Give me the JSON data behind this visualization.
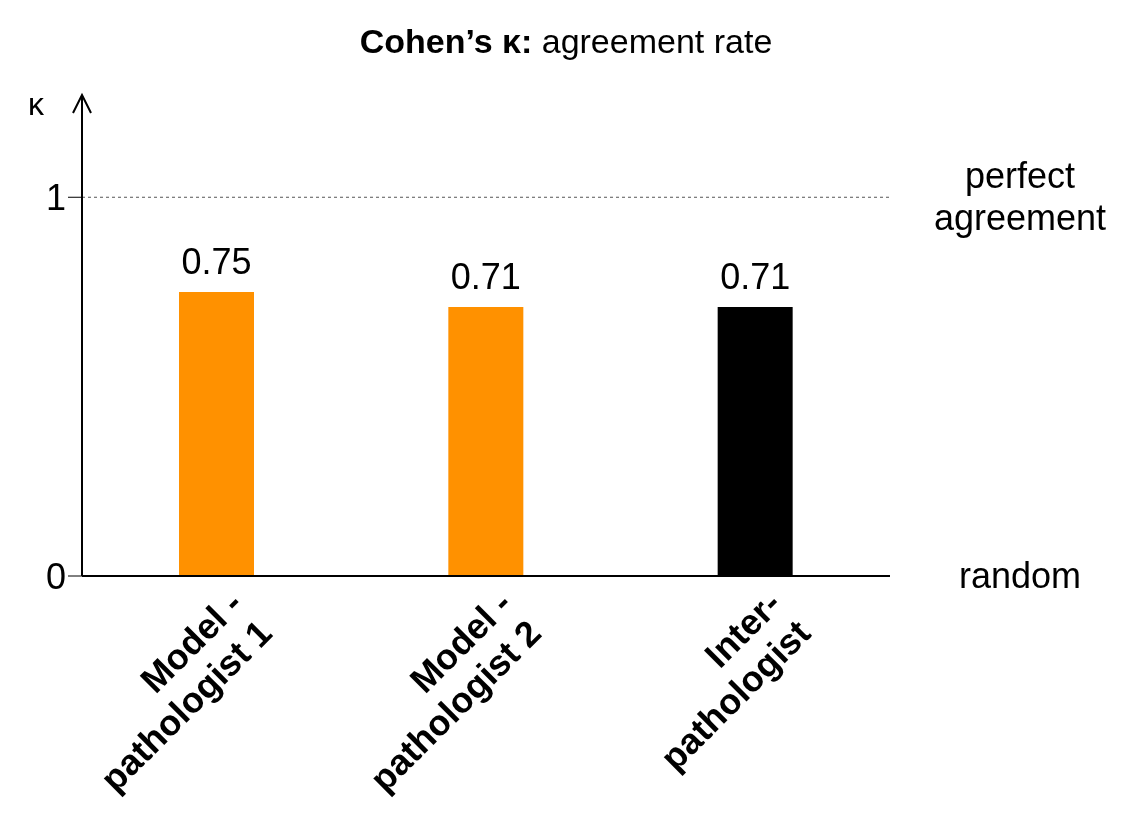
{
  "chart_data": {
    "type": "bar",
    "title": "Cohen’s κ: agreement rate",
    "ylabel": "κ",
    "categories": [
      "Model -\npathologist 1",
      "Model -\npathologist 2",
      "Inter-\npathologist"
    ],
    "values": [
      0.75,
      0.71,
      0.71
    ],
    "colors": [
      "#ff9100",
      "#ff9100",
      "#000000"
    ],
    "ylim": [
      0,
      1.27
    ],
    "yticks": [
      0,
      1
    ],
    "grid": false,
    "legend": false,
    "data_labels": true,
    "ref_lines": [
      {
        "axis": "y",
        "value": 1,
        "label": "perfect\nagreement",
        "line_style": "dotted",
        "color": "#555555"
      }
    ],
    "annotations": [
      "random"
    ]
  }
}
